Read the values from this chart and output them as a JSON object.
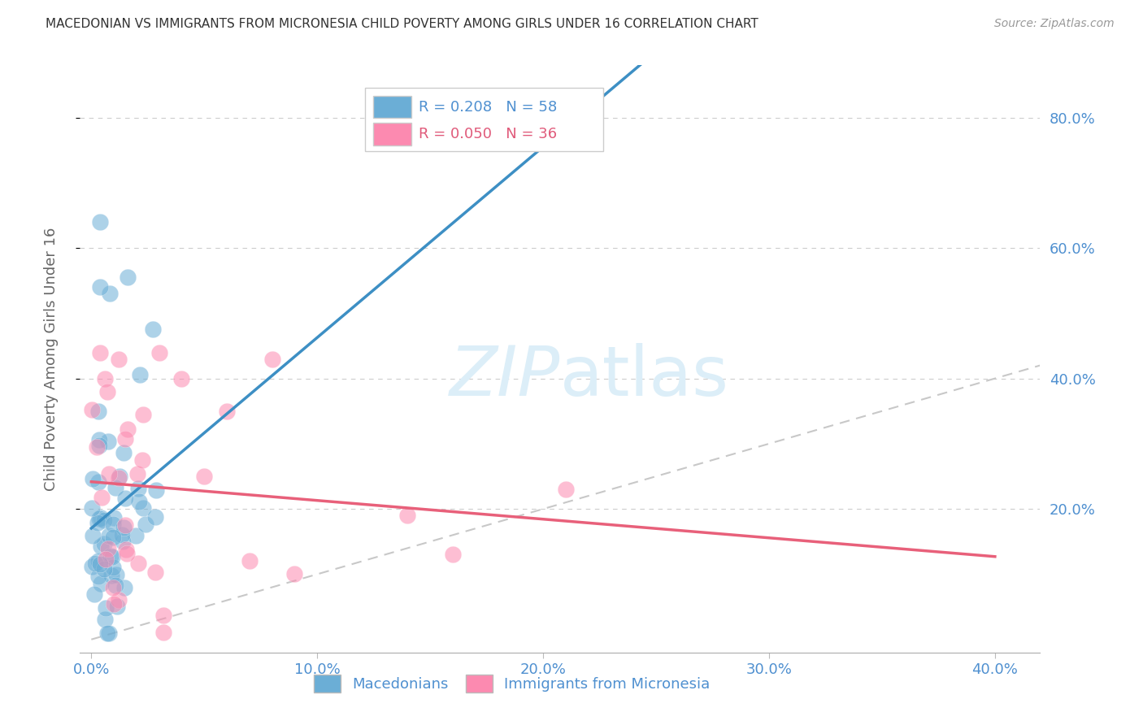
{
  "title": "MACEDONIAN VS IMMIGRANTS FROM MICRONESIA CHILD POVERTY AMONG GIRLS UNDER 16 CORRELATION CHART",
  "source": "Source: ZipAtlas.com",
  "ylabel": "Child Poverty Among Girls Under 16",
  "r_macedonian": 0.208,
  "n_macedonian": 58,
  "r_micronesia": 0.05,
  "n_micronesia": 36,
  "xlim": [
    -0.005,
    0.42
  ],
  "ylim": [
    -0.02,
    0.88
  ],
  "xticks": [
    0.0,
    0.1,
    0.2,
    0.3,
    0.4
  ],
  "yticks": [
    0.2,
    0.4,
    0.6,
    0.8
  ],
  "color_macedonian": "#6baed6",
  "color_micronesia": "#fc8ab0",
  "color_blue_line": "#3d8fc4",
  "color_pink_line": "#e8607a",
  "color_diagonal": "#c8c8c8",
  "color_axis_labels": "#4f90d0",
  "background": "#ffffff",
  "watermark_color": "#dceef8"
}
